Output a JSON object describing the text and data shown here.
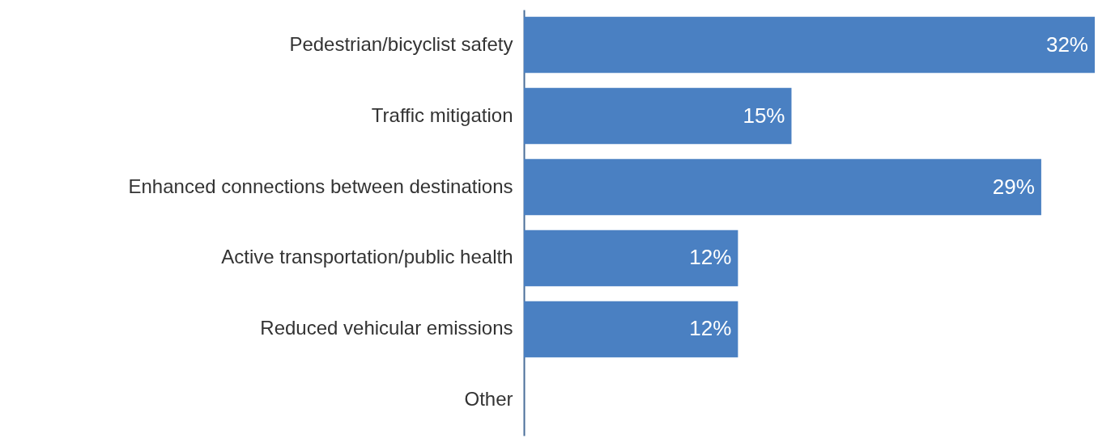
{
  "chart_data": {
    "type": "bar",
    "orientation": "horizontal",
    "categories": [
      "Pedestrian/bicyclist safety",
      "Traffic mitigation",
      "Enhanced connections between destinations",
      "Active transportation/public health",
      "Reduced vehicular emissions",
      "Other"
    ],
    "values": [
      32,
      15,
      29,
      12,
      12,
      null
    ],
    "value_labels": [
      "32%",
      "15%",
      "29%",
      "12%",
      "12%",
      null
    ],
    "color": "#4a80c2",
    "tick_labels": "y"
  }
}
